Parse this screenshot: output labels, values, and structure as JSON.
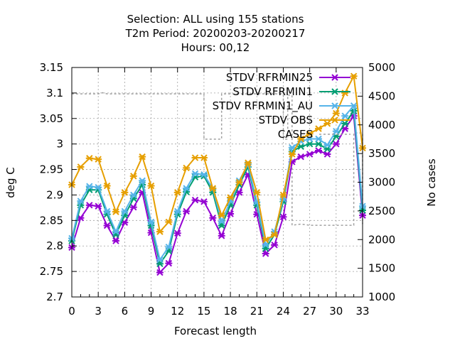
{
  "chart_data": {
    "type": "line",
    "title_lines": [
      "Selection: ALL using   155 stations",
      "T2m   Period: 20200203-20200217",
      "Hours:  00,12"
    ],
    "xlabel": "Forecast length",
    "ylabel": "deg C",
    "y2label": "No cases",
    "xlim": [
      0,
      33
    ],
    "ylim": [
      2.7,
      3.15
    ],
    "y2lim": [
      1000,
      5000
    ],
    "xticks": [
      "0",
      "3",
      "6",
      "9",
      "12",
      "15",
      "18",
      "21",
      "24",
      "27",
      "30",
      "33"
    ],
    "yticks": [
      "2.7",
      "2.75",
      "2.8",
      "2.85",
      "2.9",
      "2.95",
      "3",
      "3.05",
      "3.1",
      "3.15"
    ],
    "y2ticks": [
      "1000",
      "1500",
      "2000",
      "2500",
      "3000",
      "3500",
      "4000",
      "4500",
      "5000"
    ],
    "grid": true,
    "legend_position": "top-right",
    "x": [
      0,
      1,
      2,
      3,
      4,
      5,
      6,
      7,
      8,
      9,
      10,
      11,
      12,
      13,
      14,
      15,
      16,
      17,
      18,
      19,
      20,
      21,
      22,
      23,
      24,
      25,
      26,
      27,
      28,
      29,
      30,
      31,
      32,
      33
    ],
    "series": [
      {
        "name": "STDV RFRMIN25",
        "color": "#9400d3",
        "axis": "y",
        "values": [
          2.797,
          2.855,
          2.88,
          2.878,
          2.84,
          2.81,
          2.846,
          2.876,
          2.905,
          2.826,
          2.748,
          2.766,
          2.825,
          2.868,
          2.89,
          2.887,
          2.855,
          2.82,
          2.863,
          2.905,
          2.94,
          2.862,
          2.785,
          2.802,
          2.857,
          2.965,
          2.975,
          2.98,
          2.987,
          2.98,
          3.0,
          3.03,
          3.055,
          2.86
        ]
      },
      {
        "name": "STDV RFRMIN1",
        "color": "#009e73",
        "axis": "y",
        "values": [
          2.81,
          2.88,
          2.91,
          2.91,
          2.862,
          2.822,
          2.86,
          2.893,
          2.92,
          2.84,
          2.765,
          2.79,
          2.862,
          2.906,
          2.935,
          2.937,
          2.905,
          2.84,
          2.88,
          2.92,
          2.955,
          2.88,
          2.795,
          2.822,
          2.887,
          2.985,
          2.995,
          3.0,
          3.0,
          2.99,
          3.015,
          3.04,
          3.065,
          2.87
        ]
      },
      {
        "name": "STDV RFRMIN1_AU",
        "color": "#56b4e9",
        "axis": "y",
        "values": [
          2.815,
          2.888,
          2.917,
          2.915,
          2.868,
          2.828,
          2.868,
          2.9,
          2.928,
          2.847,
          2.773,
          2.798,
          2.868,
          2.913,
          2.942,
          2.94,
          2.912,
          2.848,
          2.888,
          2.928,
          2.96,
          2.886,
          2.802,
          2.828,
          2.892,
          2.993,
          3.005,
          3.01,
          3.01,
          2.998,
          3.025,
          3.055,
          3.075,
          2.878
        ]
      },
      {
        "name": "STDV OBS",
        "color": "#e69f00",
        "axis": "y",
        "values": [
          2.92,
          2.955,
          2.972,
          2.97,
          2.918,
          2.867,
          2.905,
          2.937,
          2.975,
          2.918,
          2.828,
          2.847,
          2.905,
          2.953,
          2.973,
          2.973,
          2.913,
          2.86,
          2.895,
          2.925,
          2.963,
          2.905,
          2.812,
          2.822,
          2.9,
          2.98,
          3.01,
          3.02,
          3.03,
          3.04,
          3.06,
          3.1,
          3.133,
          2.992
        ]
      }
    ],
    "cases": {
      "name": "CASES",
      "color": "#a0a0a0",
      "axis": "y2",
      "x": [
        0,
        3,
        3.5,
        4,
        15,
        15,
        17,
        17,
        24,
        24,
        24.5,
        24.5,
        25,
        25,
        26,
        27,
        32,
        32,
        33,
        33,
        33
      ],
      "values": [
        4540,
        4540,
        4560,
        4540,
        4540,
        3750,
        3750,
        4540,
        4540,
        3750,
        3750,
        4520,
        4520,
        2250,
        2270,
        2250,
        2250,
        3860,
        3860,
        2270,
        2550
      ]
    }
  }
}
